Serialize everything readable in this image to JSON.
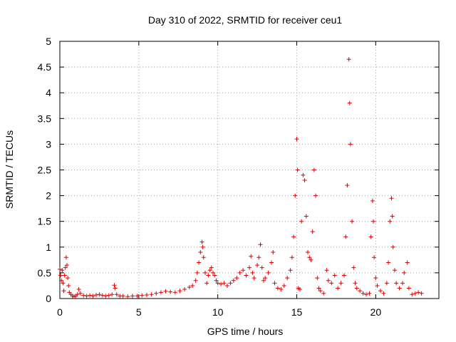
{
  "chart_data": {
    "type": "scatter",
    "title": "Day 310 of 2022, SRMTID for receiver ceu1",
    "xlabel": "GPS time / hours",
    "ylabel": "SRMTID / TECUs",
    "xlim": [
      0,
      24
    ],
    "ylim": [
      0,
      5
    ],
    "xticks": [
      "0",
      "5",
      "10",
      "15",
      "20"
    ],
    "yticks": [
      "0",
      "0.5",
      "1",
      "1.5",
      "2",
      "2.5",
      "3",
      "3.5",
      "4",
      "4.5",
      "5"
    ],
    "grid": true,
    "marker": "plus",
    "marker_color": "#e00000",
    "series": [
      {
        "points": [
          [
            0.0,
            0.57
          ],
          [
            0.05,
            0.45
          ],
          [
            0.1,
            0.35
          ],
          [
            0.15,
            0.55
          ],
          [
            0.2,
            0.3
          ],
          [
            0.25,
            0.15
          ],
          [
            0.3,
            0.45
          ],
          [
            0.35,
            0.6
          ],
          [
            0.4,
            0.8
          ],
          [
            0.45,
            0.65
          ],
          [
            0.5,
            0.4
          ],
          [
            0.55,
            0.25
          ],
          [
            0.6,
            0.12
          ],
          [
            0.7,
            0.08
          ],
          [
            0.8,
            0.05
          ],
          [
            0.9,
            0.04
          ],
          [
            1.0,
            0.05
          ],
          [
            1.1,
            0.08
          ],
          [
            1.2,
            0.18
          ],
          [
            1.3,
            0.1
          ],
          [
            1.5,
            0.06
          ],
          [
            1.7,
            0.05
          ],
          [
            1.9,
            0.06
          ],
          [
            2.1,
            0.05
          ],
          [
            2.3,
            0.07
          ],
          [
            2.5,
            0.08
          ],
          [
            2.7,
            0.06
          ],
          [
            2.9,
            0.05
          ],
          [
            3.1,
            0.06
          ],
          [
            3.3,
            0.08
          ],
          [
            3.45,
            0.26
          ],
          [
            3.5,
            0.2
          ],
          [
            3.6,
            0.08
          ],
          [
            3.8,
            0.05
          ],
          [
            4.0,
            0.05
          ],
          [
            4.3,
            0.04
          ],
          [
            4.6,
            0.05
          ],
          [
            4.9,
            0.05
          ],
          [
            5.2,
            0.06
          ],
          [
            5.5,
            0.07
          ],
          [
            5.8,
            0.08
          ],
          [
            6.1,
            0.1
          ],
          [
            6.4,
            0.12
          ],
          [
            6.7,
            0.14
          ],
          [
            7.0,
            0.13
          ],
          [
            7.3,
            0.12
          ],
          [
            7.6,
            0.15
          ],
          [
            7.9,
            0.18
          ],
          [
            8.2,
            0.22
          ],
          [
            8.4,
            0.25
          ],
          [
            8.6,
            0.35
          ],
          [
            8.7,
            0.5
          ],
          [
            8.8,
            0.7
          ],
          [
            8.9,
            0.9
          ],
          [
            9.0,
            1.1
          ],
          [
            9.05,
            1.0
          ],
          [
            9.1,
            0.8
          ],
          [
            9.2,
            0.5
          ],
          [
            9.3,
            0.3
          ],
          [
            9.4,
            0.45
          ],
          [
            9.5,
            0.55
          ],
          [
            9.6,
            0.6
          ],
          [
            9.7,
            0.5
          ],
          [
            9.8,
            0.45
          ],
          [
            9.9,
            0.35
          ],
          [
            10.0,
            0.3
          ],
          [
            10.2,
            0.28
          ],
          [
            10.4,
            0.3
          ],
          [
            10.6,
            0.25
          ],
          [
            10.8,
            0.3
          ],
          [
            11.0,
            0.35
          ],
          [
            11.2,
            0.4
          ],
          [
            11.4,
            0.5
          ],
          [
            11.6,
            0.55
          ],
          [
            11.8,
            0.45
          ],
          [
            12.0,
            0.6
          ],
          [
            12.1,
            0.82
          ],
          [
            12.2,
            0.5
          ],
          [
            12.3,
            0.4
          ],
          [
            12.5,
            0.65
          ],
          [
            12.6,
            0.8
          ],
          [
            12.7,
            1.05
          ],
          [
            12.8,
            0.6
          ],
          [
            12.9,
            0.35
          ],
          [
            13.0,
            0.4
          ],
          [
            13.2,
            0.5
          ],
          [
            13.4,
            0.7
          ],
          [
            13.5,
            0.9
          ],
          [
            13.6,
            0.3
          ],
          [
            13.8,
            0.2
          ],
          [
            14.0,
            0.18
          ],
          [
            14.2,
            0.25
          ],
          [
            14.4,
            0.4
          ],
          [
            14.6,
            0.55
          ],
          [
            14.7,
            0.8
          ],
          [
            14.8,
            1.2
          ],
          [
            14.9,
            2.0
          ],
          [
            15.0,
            3.1
          ],
          [
            15.05,
            2.5
          ],
          [
            15.1,
            0.2
          ],
          [
            15.2,
            0.18
          ],
          [
            15.3,
            1.5
          ],
          [
            15.4,
            2.4
          ],
          [
            15.5,
            2.3
          ],
          [
            15.6,
            1.6
          ],
          [
            15.7,
            0.9
          ],
          [
            15.8,
            0.8
          ],
          [
            15.9,
            0.75
          ],
          [
            16.0,
            1.3
          ],
          [
            16.1,
            2.5
          ],
          [
            16.2,
            2.0
          ],
          [
            16.3,
            0.4
          ],
          [
            16.4,
            0.2
          ],
          [
            16.5,
            0.15
          ],
          [
            16.7,
            0.1
          ],
          [
            16.9,
            0.55
          ],
          [
            17.0,
            0.35
          ],
          [
            17.2,
            0.3
          ],
          [
            17.4,
            0.45
          ],
          [
            17.6,
            0.2
          ],
          [
            17.8,
            0.3
          ],
          [
            18.0,
            0.45
          ],
          [
            18.1,
            1.2
          ],
          [
            18.2,
            2.2
          ],
          [
            18.3,
            4.65
          ],
          [
            18.35,
            3.8
          ],
          [
            18.4,
            3.0
          ],
          [
            18.5,
            1.5
          ],
          [
            18.6,
            0.6
          ],
          [
            18.7,
            0.3
          ],
          [
            18.8,
            0.2
          ],
          [
            19.0,
            0.15
          ],
          [
            19.2,
            0.1
          ],
          [
            19.4,
            0.08
          ],
          [
            19.6,
            0.1
          ],
          [
            19.7,
            1.2
          ],
          [
            19.8,
            1.9
          ],
          [
            19.85,
            1.5
          ],
          [
            19.9,
            0.8
          ],
          [
            20.0,
            0.4
          ],
          [
            20.1,
            0.25
          ],
          [
            20.3,
            0.15
          ],
          [
            20.5,
            0.1
          ],
          [
            20.7,
            0.3
          ],
          [
            20.8,
            0.7
          ],
          [
            20.9,
            1.5
          ],
          [
            21.0,
            1.95
          ],
          [
            21.05,
            1.6
          ],
          [
            21.1,
            1.0
          ],
          [
            21.2,
            0.55
          ],
          [
            21.3,
            0.3
          ],
          [
            21.5,
            0.2
          ],
          [
            21.7,
            0.3
          ],
          [
            21.8,
            0.5
          ],
          [
            22.0,
            0.7
          ],
          [
            22.1,
            0.2
          ],
          [
            22.3,
            0.08
          ],
          [
            22.5,
            0.1
          ],
          [
            22.7,
            0.12
          ],
          [
            22.9,
            0.1
          ]
        ]
      }
    ]
  }
}
